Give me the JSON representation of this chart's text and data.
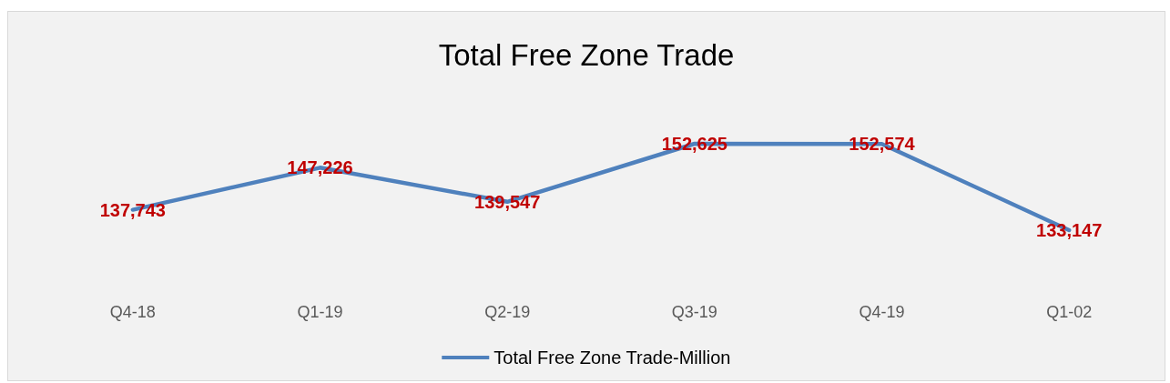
{
  "chart_data": {
    "type": "line",
    "title": "Total Free Zone Trade",
    "categories": [
      "Q4-18",
      "Q1-19",
      "Q2-19",
      "Q3-19",
      "Q4-19",
      "Q1-02"
    ],
    "series": [
      {
        "name": "Total Free Zone Trade-Million",
        "color": "#4f81bd",
        "values": [
          137743,
          147226,
          139547,
          152625,
          152574,
          133147
        ],
        "value_labels": [
          "137,743",
          "147,226",
          "139,547",
          "152,625",
          "152,574",
          "133,147"
        ]
      }
    ],
    "tick_labels": "x",
    "grid": false,
    "legend": "bottom",
    "marker": "none",
    "line_style": "solid"
  }
}
